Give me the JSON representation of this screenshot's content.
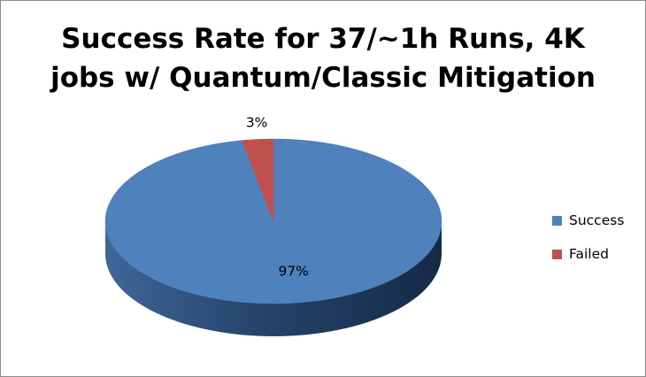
{
  "chart_data": {
    "type": "pie",
    "title_lines": [
      "Success Rate for 37/~1h Runs, 4K",
      "jobs w/ Quantum/Classic Mitigation"
    ],
    "categories": [
      "Success",
      "Failed"
    ],
    "values": [
      97,
      3
    ],
    "data_labels": [
      "97%",
      "3%"
    ],
    "colors": [
      "#4f81bd",
      "#c0504d"
    ],
    "side_colors": [
      "#1f3a5f",
      "#7a2c2a"
    ],
    "style": "3d",
    "legend_position": "right"
  }
}
